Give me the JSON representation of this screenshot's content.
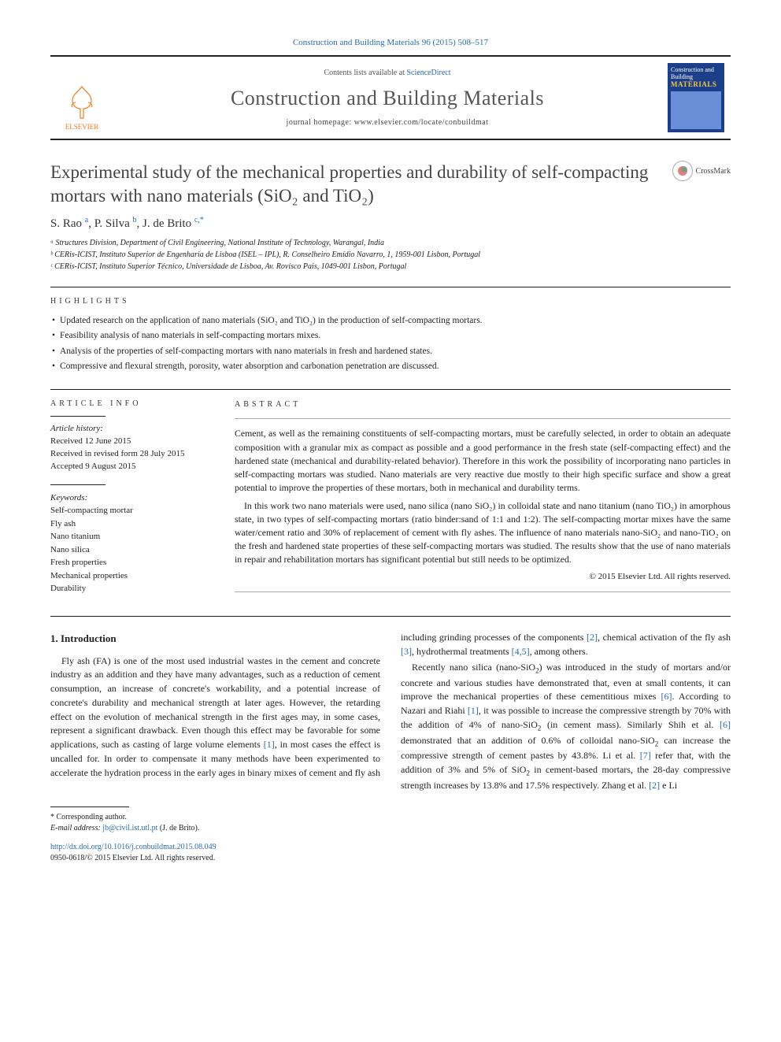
{
  "citation": "Construction and Building Materials 96 (2015) 508–517",
  "header": {
    "contents_prefix": "Contents lists available at ",
    "contents_link": "ScienceDirect",
    "journal_name": "Construction and Building Materials",
    "homepage_prefix": "journal homepage: ",
    "homepage": "www.elsevier.com/locate/conbuildmat",
    "publisher": "ELSEVIER",
    "cover_top": "Construction and Building",
    "cover_mat": "MATERIALS"
  },
  "crossmark_label": "CrossMark",
  "title": "Experimental study of the mechanical properties and durability of self-compacting mortars with nano materials (SiO₂ and TiO₂)",
  "authors_html": "S. Rao <sup>a</sup>, P. Silva <sup>b</sup>, J. de Brito <sup>c,</sup><sup>*</sup>",
  "affiliations": [
    "ᵃ Structures Division, Department of Civil Engineering, National Institute of Technology, Warangal, India",
    "ᵇ CERis-ICIST, Instituto Superior de Engenharia de Lisboa (ISEL – IPL), R. Conselheiro Emídio Navarro, 1, 1959-001 Lisbon, Portugal",
    "ᶜ CERis-ICIST, Instituto Superior Técnico, Universidade de Lisboa, Av. Rovisco Pais, 1049-001 Lisbon, Portugal"
  ],
  "highlights_label": "HIGHLIGHTS",
  "highlights": [
    "Updated research on the application of nano materials (SiO₂ and TiO₂) in the production of self-compacting mortars.",
    "Feasibility analysis of nano materials in self-compacting mortars mixes.",
    "Analysis of the properties of self-compacting mortars with nano materials in fresh and hardened states.",
    "Compressive and flexural strength, porosity, water absorption and carbonation penetration are discussed."
  ],
  "article_info_label": "ARTICLE INFO",
  "abstract_label": "ABSTRACT",
  "history_label": "Article history:",
  "history": [
    "Received 12 June 2015",
    "Received in revised form 28 July 2015",
    "Accepted 9 August 2015"
  ],
  "keywords_label": "Keywords:",
  "keywords": [
    "Self-compacting mortar",
    "Fly ash",
    "Nano titanium",
    "Nano silica",
    "Fresh properties",
    "Mechanical properties",
    "Durability"
  ],
  "abstract": [
    "Cement, as well as the remaining constituents of self-compacting mortars, must be carefully selected, in order to obtain an adequate composition with a granular mix as compact as possible and a good performance in the fresh state (self-compacting effect) and the hardened state (mechanical and durability-related behavior). Therefore in this work the possibility of incorporating nano particles in self-compacting mortars was studied. Nano materials are very reactive due mostly to their high specific surface and show a great potential to improve the properties of these mortars, both in mechanical and durability terms.",
    "In this work two nano materials were used, nano silica (nano SiO₂) in colloidal state and nano titanium (nano TiO₂) in amorphous state, in two types of self-compacting mortars (ratio binder:sand of 1:1 and 1:2). The self-compacting mortar mixes have the same water/cement ratio and 30% of replacement of cement with fly ashes. The influence of nano materials nano-SiO₂ and nano-TiO₂ on the fresh and hardened state properties of these self-compacting mortars was studied. The results show that the use of nano materials in repair and rehabilitation mortars has significant potential but still needs to be optimized."
  ],
  "copyright": "© 2015 Elsevier Ltd. All rights reserved.",
  "intro_heading": "1. Introduction",
  "intro_p1": "Fly ash (FA) is one of the most used industrial wastes in the cement and concrete industry as an addition and they have many advantages, such as a reduction of cement consumption, an increase of concrete's workability, and a potential increase of concrete's durability and mechanical strength at later ages. However, the retarding effect on the evolution of mechanical strength in the first ages may, in some cases, represent a significant drawback. Even though this effect may be favorable for some applications, such as casting of large volume elements [1], in most cases the effect is uncalled for. In order to compensate it many methods have",
  "intro_p2": "been experimented to accelerate the hydration process in the early ages in binary mixes of cement and fly ash including grinding processes of the components [2], chemical activation of the fly ash [3], hydrothermal treatments [4,5], among others.",
  "intro_p3": "Recently nano silica (nano-SiO₂) was introduced in the study of mortars and/or concrete and various studies have demonstrated that, even at small contents, it can improve the mechanical properties of these cementitious mixes [6]. According to Nazari and Riahi [1], it was possible to increase the compressive strength by 70% with the addition of 4% of nano-SiO₂ (in cement mass). Similarly Shih et al. [6] demonstrated that an addition of 0.6% of colloidal nano-SiO₂ can increase the compressive strength of cement pastes by 43.8%. Li et al. [7] refer that, with the addition of 3% and 5% of SiO₂ in cement-based mortars, the 28-day compressive strength increases by 13.8% and 17.5% respectively. Zhang et al. [2] e Li",
  "corresponding_label": "* Corresponding author.",
  "email_label": "E-mail address: ",
  "email": "jb@civil.ist.utl.pt",
  "email_who": " (J. de Brito).",
  "doi": "http://dx.doi.org/10.1016/j.conbuildmat.2015.08.049",
  "issn_line": "0950-0618/© 2015 Elsevier Ltd. All rights reserved.",
  "colors": {
    "link": "#2a6bb0",
    "elsevier": "#f47b20",
    "cover_bg": "#1b3f8a",
    "cover_accent": "#f5c542"
  }
}
